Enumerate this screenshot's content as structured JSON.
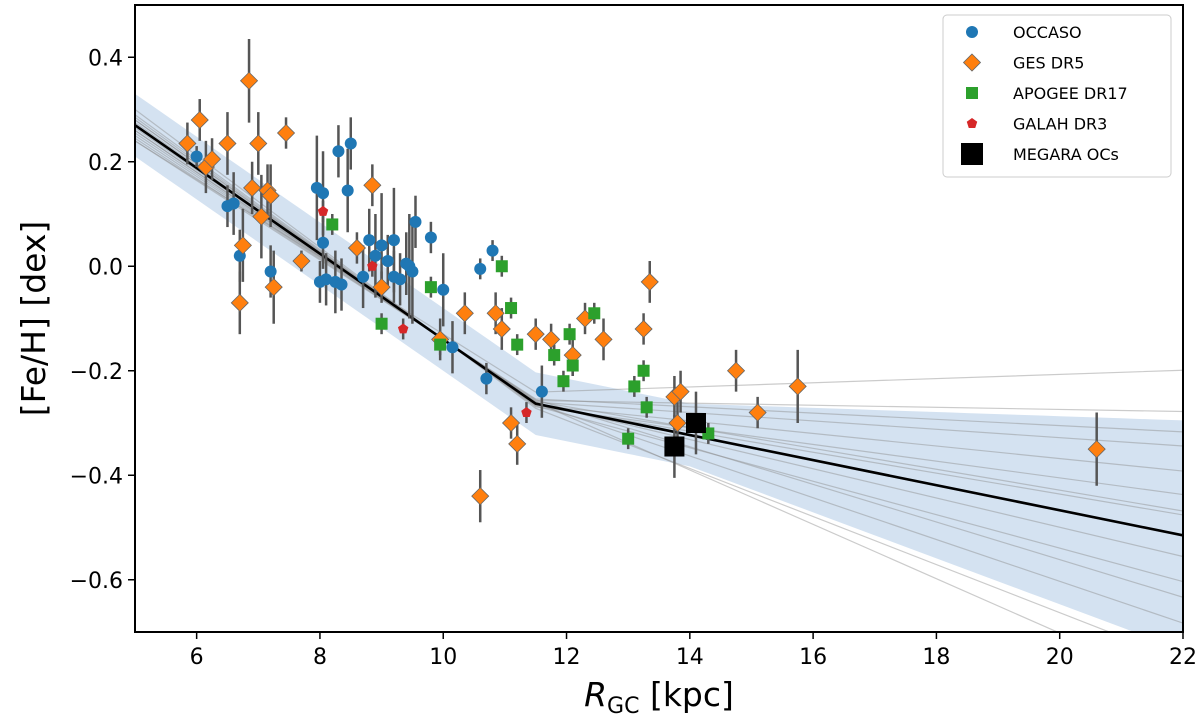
{
  "chart_data": {
    "type": "scatter",
    "xlabel_main": "R",
    "xlabel_sub": "GC",
    "xlabel_unit": " [kpc]",
    "ylabel": "[Fe/H] [dex]",
    "xlim": [
      5,
      22
    ],
    "ylim": [
      -0.7,
      0.5
    ],
    "xticks": [
      6,
      8,
      10,
      12,
      14,
      16,
      18,
      20,
      22
    ],
    "yticks": [
      0.4,
      0.2,
      0.0,
      -0.2,
      -0.4,
      -0.6
    ],
    "ytick_labels": [
      "0.4",
      "0.2",
      "0.0",
      "−0.2",
      "−0.4",
      "−0.6"
    ],
    "legend_position": "top-right",
    "grid": false,
    "fit": {
      "break_r": 11.5,
      "main": {
        "inner_slope": -0.082,
        "inner_intercept": 0.68,
        "outer_slope": -0.024
      },
      "band_half_width": 0.06,
      "band_color": "#c6d8ec",
      "sample_lines": [
        {
          "inner_slope": -0.074,
          "inner_intercept": 0.61,
          "outer_slope": 0.004
        },
        {
          "inner_slope": -0.078,
          "inner_intercept": 0.64,
          "outer_slope": -0.002
        },
        {
          "inner_slope": -0.08,
          "inner_intercept": 0.66,
          "outer_slope": -0.008
        },
        {
          "inner_slope": -0.084,
          "inner_intercept": 0.7,
          "outer_slope": -0.012
        },
        {
          "inner_slope": -0.086,
          "inner_intercept": 0.72,
          "outer_slope": -0.016
        },
        {
          "inner_slope": -0.079,
          "inner_intercept": 0.65,
          "outer_slope": -0.02
        },
        {
          "inner_slope": -0.083,
          "inner_intercept": 0.69,
          "outer_slope": -0.024
        },
        {
          "inner_slope": -0.081,
          "inner_intercept": 0.67,
          "outer_slope": -0.028
        },
        {
          "inner_slope": -0.085,
          "inner_intercept": 0.71,
          "outer_slope": -0.032
        },
        {
          "inner_slope": -0.077,
          "inner_intercept": 0.63,
          "outer_slope": -0.036
        },
        {
          "inner_slope": -0.082,
          "inner_intercept": 0.68,
          "outer_slope": -0.04
        },
        {
          "inner_slope": -0.088,
          "inner_intercept": 0.74,
          "outer_slope": -0.046
        },
        {
          "inner_slope": -0.08,
          "inner_intercept": 0.66,
          "outer_slope": -0.052
        },
        {
          "inner_slope": -0.084,
          "inner_intercept": 0.7,
          "outer_slope": -0.02
        },
        {
          "inner_slope": -0.076,
          "inner_intercept": 0.62,
          "outer_slope": -0.006
        }
      ]
    },
    "series": [
      {
        "name": "OCCASO",
        "marker": "circle",
        "color": "#1f77b4",
        "points": [
          {
            "x": 6.0,
            "y": 0.21,
            "err": 0.02
          },
          {
            "x": 6.5,
            "y": 0.115,
            "err": 0.04
          },
          {
            "x": 6.6,
            "y": 0.12,
            "err": 0.06
          },
          {
            "x": 6.7,
            "y": 0.02,
            "err": 0.05
          },
          {
            "x": 7.2,
            "y": -0.01,
            "err": 0.05
          },
          {
            "x": 7.95,
            "y": 0.15,
            "err": 0.1
          },
          {
            "x": 8.0,
            "y": -0.03,
            "err": 0.04
          },
          {
            "x": 8.05,
            "y": 0.14,
            "err": 0.08
          },
          {
            "x": 8.05,
            "y": 0.045,
            "err": 0.05
          },
          {
            "x": 8.1,
            "y": -0.025,
            "err": 0.05
          },
          {
            "x": 8.25,
            "y": -0.03,
            "err": 0.06
          },
          {
            "x": 8.35,
            "y": -0.035,
            "err": 0.05
          },
          {
            "x": 8.3,
            "y": 0.22,
            "err": 0.05
          },
          {
            "x": 8.45,
            "y": 0.145,
            "err": 0.08
          },
          {
            "x": 8.5,
            "y": 0.235,
            "err": 0.05
          },
          {
            "x": 8.7,
            "y": -0.02,
            "err": 0.06
          },
          {
            "x": 8.8,
            "y": 0.05,
            "err": 0.06
          },
          {
            "x": 8.9,
            "y": 0.02,
            "err": 0.08
          },
          {
            "x": 9.0,
            "y": 0.04,
            "err": 0.1
          },
          {
            "x": 9.1,
            "y": 0.01,
            "err": 0.05
          },
          {
            "x": 9.2,
            "y": 0.05,
            "err": 0.1
          },
          {
            "x": 9.2,
            "y": -0.02,
            "err": 0.05
          },
          {
            "x": 9.3,
            "y": -0.025,
            "err": 0.05
          },
          {
            "x": 9.4,
            "y": 0.005,
            "err": 0.06
          },
          {
            "x": 9.45,
            "y": 0.0,
            "err": 0.1
          },
          {
            "x": 9.5,
            "y": -0.01,
            "err": 0.1
          },
          {
            "x": 9.55,
            "y": 0.085,
            "err": 0.05
          },
          {
            "x": 9.8,
            "y": 0.055,
            "err": 0.03
          },
          {
            "x": 10.0,
            "y": -0.045,
            "err": 0.07
          },
          {
            "x": 10.15,
            "y": -0.155,
            "err": 0.05
          },
          {
            "x": 10.6,
            "y": -0.005,
            "err": 0.02
          },
          {
            "x": 10.7,
            "y": -0.215,
            "err": 0.03
          },
          {
            "x": 10.8,
            "y": 0.03,
            "err": 0.02
          },
          {
            "x": 11.6,
            "y": -0.24,
            "err": 0.05
          }
        ]
      },
      {
        "name": "GES DR5",
        "marker": "diamond",
        "color": "#ff7f0e",
        "points": [
          {
            "x": 5.85,
            "y": 0.235,
            "err": 0.04
          },
          {
            "x": 6.05,
            "y": 0.28,
            "err": 0.04
          },
          {
            "x": 6.15,
            "y": 0.19,
            "err": 0.05
          },
          {
            "x": 6.25,
            "y": 0.205,
            "err": 0.04
          },
          {
            "x": 6.5,
            "y": 0.235,
            "err": 0.06
          },
          {
            "x": 6.7,
            "y": -0.07,
            "err": 0.06
          },
          {
            "x": 6.75,
            "y": 0.04,
            "err": 0.07
          },
          {
            "x": 6.85,
            "y": 0.355,
            "err": 0.08
          },
          {
            "x": 6.9,
            "y": 0.15,
            "err": 0.05
          },
          {
            "x": 7.0,
            "y": 0.235,
            "err": 0.06
          },
          {
            "x": 7.05,
            "y": 0.095,
            "err": 0.08
          },
          {
            "x": 7.15,
            "y": 0.145,
            "err": 0.05
          },
          {
            "x": 7.2,
            "y": 0.135,
            "err": 0.06
          },
          {
            "x": 7.25,
            "y": -0.04,
            "err": 0.07
          },
          {
            "x": 7.45,
            "y": 0.255,
            "err": 0.03
          },
          {
            "x": 7.7,
            "y": 0.01,
            "err": 0.02
          },
          {
            "x": 8.6,
            "y": 0.035,
            "err": 0.03
          },
          {
            "x": 8.85,
            "y": 0.155,
            "err": 0.04
          },
          {
            "x": 9.0,
            "y": -0.04,
            "err": 0.03
          },
          {
            "x": 9.95,
            "y": -0.14,
            "err": 0.04
          },
          {
            "x": 10.35,
            "y": -0.09,
            "err": 0.04
          },
          {
            "x": 10.6,
            "y": -0.44,
            "err": 0.05
          },
          {
            "x": 10.85,
            "y": -0.09,
            "err": 0.04
          },
          {
            "x": 10.95,
            "y": -0.12,
            "err": 0.04
          },
          {
            "x": 11.1,
            "y": -0.3,
            "err": 0.03
          },
          {
            "x": 11.2,
            "y": -0.34,
            "err": 0.04
          },
          {
            "x": 11.5,
            "y": -0.13,
            "err": 0.03
          },
          {
            "x": 11.75,
            "y": -0.14,
            "err": 0.03
          },
          {
            "x": 12.1,
            "y": -0.17,
            "err": 0.04
          },
          {
            "x": 12.3,
            "y": -0.1,
            "err": 0.03
          },
          {
            "x": 12.6,
            "y": -0.14,
            "err": 0.04
          },
          {
            "x": 13.25,
            "y": -0.12,
            "err": 0.03
          },
          {
            "x": 13.35,
            "y": -0.03,
            "err": 0.04
          },
          {
            "x": 13.75,
            "y": -0.25,
            "err": 0.04
          },
          {
            "x": 13.8,
            "y": -0.3,
            "err": 0.04
          },
          {
            "x": 13.85,
            "y": -0.24,
            "err": 0.04
          },
          {
            "x": 14.75,
            "y": -0.2,
            "err": 0.04
          },
          {
            "x": 15.1,
            "y": -0.28,
            "err": 0.03
          },
          {
            "x": 15.75,
            "y": -0.23,
            "err": 0.07
          },
          {
            "x": 20.6,
            "y": -0.35,
            "err": 0.07
          }
        ]
      },
      {
        "name": "APOGEE DR17",
        "marker": "square",
        "color": "#2ca02c",
        "points": [
          {
            "x": 8.2,
            "y": 0.08,
            "err": 0.02
          },
          {
            "x": 9.0,
            "y": -0.11,
            "err": 0.02
          },
          {
            "x": 9.8,
            "y": -0.04,
            "err": 0.02
          },
          {
            "x": 9.95,
            "y": -0.15,
            "err": 0.02
          },
          {
            "x": 10.95,
            "y": 0.0,
            "err": 0.02
          },
          {
            "x": 11.1,
            "y": -0.08,
            "err": 0.02
          },
          {
            "x": 11.2,
            "y": -0.15,
            "err": 0.02
          },
          {
            "x": 11.8,
            "y": -0.17,
            "err": 0.02
          },
          {
            "x": 11.95,
            "y": -0.22,
            "err": 0.02
          },
          {
            "x": 12.05,
            "y": -0.13,
            "err": 0.02
          },
          {
            "x": 12.1,
            "y": -0.19,
            "err": 0.02
          },
          {
            "x": 12.45,
            "y": -0.09,
            "err": 0.02
          },
          {
            "x": 13.0,
            "y": -0.33,
            "err": 0.02
          },
          {
            "x": 13.1,
            "y": -0.23,
            "err": 0.02
          },
          {
            "x": 13.25,
            "y": -0.2,
            "err": 0.02
          },
          {
            "x": 13.3,
            "y": -0.27,
            "err": 0.02
          },
          {
            "x": 14.3,
            "y": -0.32,
            "err": 0.02
          }
        ]
      },
      {
        "name": "GALAH DR3",
        "marker": "pentagon",
        "color": "#d62728",
        "points": [
          {
            "x": 8.05,
            "y": 0.105,
            "err": 0.02
          },
          {
            "x": 8.85,
            "y": 0.0,
            "err": 0.02
          },
          {
            "x": 9.35,
            "y": -0.12,
            "err": 0.02
          },
          {
            "x": 11.35,
            "y": -0.28,
            "err": 0.02
          }
        ]
      },
      {
        "name": "MEGARA OCs",
        "marker": "big-square",
        "color": "#000000",
        "points": [
          {
            "x": 13.75,
            "y": -0.345,
            "err": 0.06
          },
          {
            "x": 14.1,
            "y": -0.3,
            "err": 0.06
          }
        ]
      }
    ]
  }
}
